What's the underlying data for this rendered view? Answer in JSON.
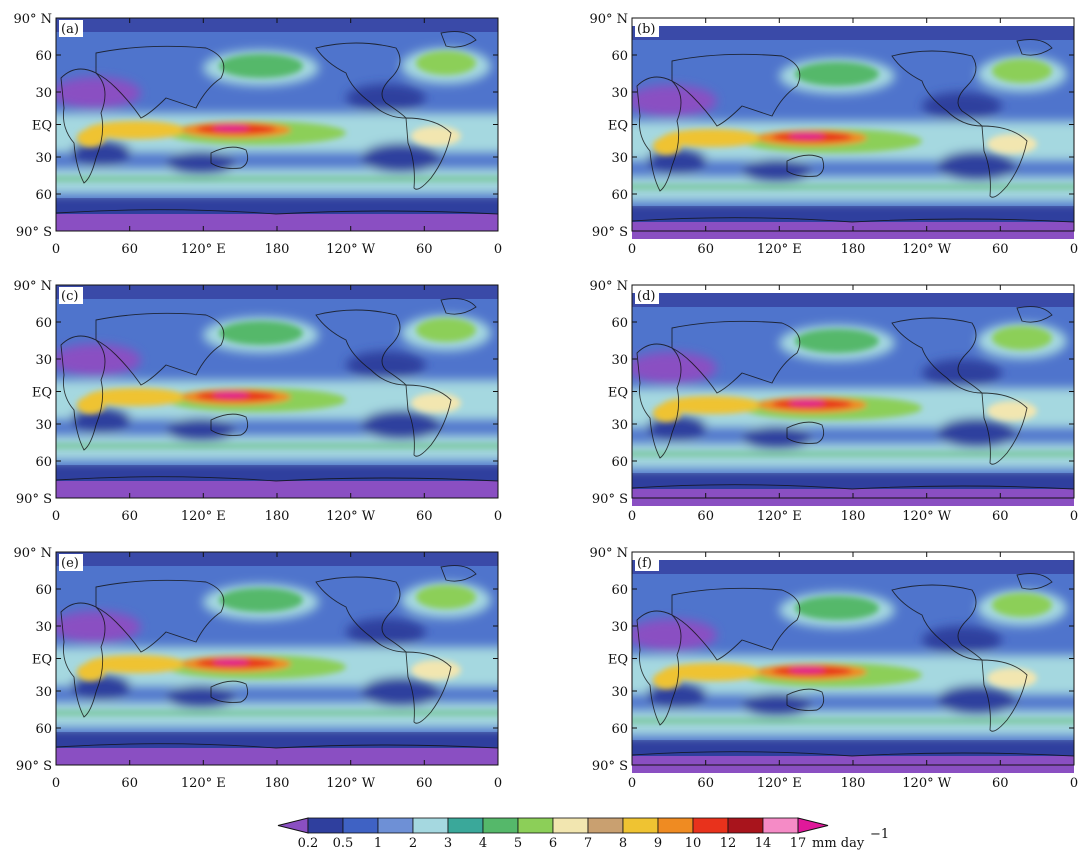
{
  "chart_data": {
    "type": "filled-contour-map",
    "panels": [
      {
        "label": "(a)"
      },
      {
        "label": "(b)"
      },
      {
        "label": "(c)"
      },
      {
        "label": "(d)"
      },
      {
        "label": "(e)"
      },
      {
        "label": "(f)"
      }
    ],
    "lat_ticks": [
      "90° N",
      "60",
      "30",
      "EQ",
      "30",
      "60",
      "90° S"
    ],
    "lon_ticks": [
      "0",
      "60",
      "120° E",
      "180",
      "120° W",
      "60",
      "0"
    ],
    "colorbar": {
      "levels": [
        "0.2",
        "0.5",
        "1",
        "2",
        "3",
        "4",
        "5",
        "6",
        "7",
        "8",
        "9",
        "10",
        "12",
        "14",
        "17"
      ],
      "colors": [
        "#8a4fc2",
        "#2f3f9e",
        "#3f62c4",
        "#6e90d6",
        "#a5d8e0",
        "#3aa89a",
        "#55b86a",
        "#8ccf58",
        "#f2e6b0",
        "#c9a070",
        "#efc332",
        "#ef8b22",
        "#e8321c",
        "#a8141c",
        "#f58bc6",
        "#e0189a"
      ],
      "unit": "mm  day",
      "unit_exp": "−1"
    }
  }
}
